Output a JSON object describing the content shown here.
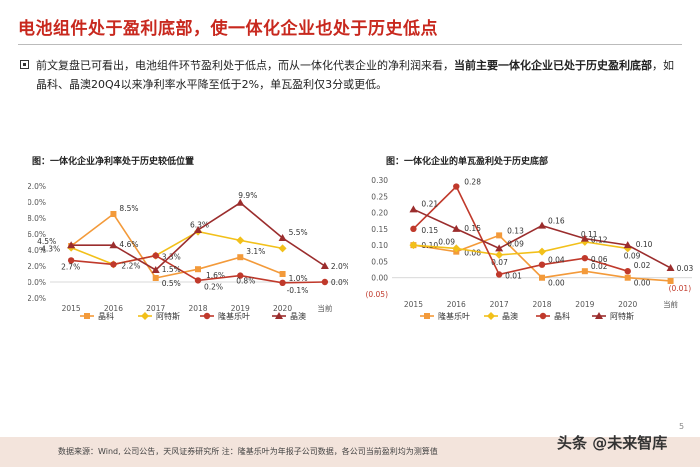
{
  "header": {
    "title": "电池组件处于盈利底部，使一体化企业也处于历史低点"
  },
  "summary": {
    "normal_part": "前文复盘已可看出，电池组件环节盈利处于低点，而从一体化代表企业的净利润来看，",
    "bold_part": "当前主要一体化企业已处于历史盈利底部",
    "tail_part": "，如晶科、晶澳20Q4以来净利率水平降至低于2%，单瓦盈利仅3分或更低。"
  },
  "footer": {
    "source": "数据来源：Wind, 公司公告，天风证券研究所  注：隆基乐叶为年报子公司数据，各公司当前盈利均为测算值",
    "watermark_main": "头条 @未来智库",
    "watermark_bg": "未来智库",
    "page": "5"
  },
  "colors": {
    "title_red": "#c8281e",
    "jinko_orange": "#f39a3a",
    "aiko_yellow": "#f2c01a",
    "longi_red": "#c0392b",
    "jasolar_darkred": "#9b2d2d"
  },
  "chart_data": [
    {
      "type": "line",
      "title": "图：一体化企业净利率处于历史较低位置",
      "categories": [
        "2015",
        "2016",
        "2017",
        "2018",
        "2019",
        "2020",
        "当前"
      ],
      "y_tick_labels": [
        "12.0%",
        "10.0%",
        "8.0%",
        "6.0%",
        "4.0%",
        "2.0%",
        "0.0%",
        "-2.0%"
      ],
      "ylim": [
        -2,
        12
      ],
      "legend_position": "bottom",
      "series": [
        {
          "name": "晶科",
          "color": "#f39a3a",
          "marker": "square",
          "values": [
            4.5,
            8.5,
            0.5,
            1.6,
            3.1,
            1.0,
            null
          ],
          "labels": [
            "4.5%",
            "8.5%",
            "0.5%",
            "1.6%",
            "3.1%",
            "1.0%",
            ""
          ]
        },
        {
          "name": "阿特斯",
          "color": "#f2c01a",
          "marker": "diamond",
          "values": [
            4.3,
            2.2,
            3.3,
            6.3,
            5.2,
            4.2,
            null
          ],
          "labels": [
            "4.3%",
            "",
            "",
            "6.3%",
            "",
            "",
            ""
          ]
        },
        {
          "name": "隆基乐叶",
          "color": "#c0392b",
          "marker": "circle",
          "values": [
            2.7,
            2.2,
            3.3,
            0.2,
            0.8,
            -0.1,
            0.0
          ],
          "labels": [
            "2.7%",
            "2.2%",
            "3.3%",
            "0.2%",
            "0.8%",
            "-0.1%",
            "0.0%"
          ]
        },
        {
          "name": "晶澳",
          "color": "#9b2d2d",
          "marker": "triangle",
          "values": [
            4.6,
            4.6,
            1.5,
            6.5,
            9.9,
            5.5,
            2.0
          ],
          "labels": [
            "",
            "4.6%",
            "1.5%",
            "",
            "9.9%",
            "5.5%",
            "2.0%"
          ]
        }
      ]
    },
    {
      "type": "line",
      "title": "图：一体化企业的单瓦盈利处于历史底部",
      "categories": [
        "2015",
        "2016",
        "2017",
        "2018",
        "2019",
        "2020",
        "当前"
      ],
      "y_tick_labels": [
        "0.30",
        "0.25",
        "0.20",
        "0.15",
        "0.10",
        "0.05",
        "0.00",
        "(0.05)"
      ],
      "ylim": [
        -0.05,
        0.3
      ],
      "legend_position": "bottom",
      "series": [
        {
          "name": "隆基乐叶",
          "color": "#f39a3a",
          "marker": "square",
          "values": [
            0.1,
            0.08,
            0.13,
            0.0,
            0.02,
            0.0,
            -0.01
          ],
          "labels": [
            "0.10",
            "0.08",
            "0.13",
            "0.00",
            "0.02",
            "0.00",
            "(0.01)"
          ]
        },
        {
          "name": "晶澳",
          "color": "#f2c01a",
          "marker": "diamond",
          "values": [
            0.1,
            0.09,
            0.07,
            0.08,
            0.11,
            0.09,
            null
          ],
          "labels": [
            "",
            "0.09",
            "0.07",
            "",
            "0.11",
            "0.09",
            ""
          ]
        },
        {
          "name": "晶科",
          "color": "#c0392b",
          "marker": "circle",
          "values": [
            0.15,
            0.28,
            0.01,
            0.04,
            0.06,
            0.02,
            null
          ],
          "labels": [
            "0.15",
            "0.28",
            "0.01",
            "0.04",
            "0.06",
            "0.02",
            ""
          ]
        },
        {
          "name": "阿特斯",
          "color": "#9b2d2d",
          "marker": "triangle",
          "values": [
            0.21,
            0.15,
            0.09,
            0.16,
            0.12,
            0.1,
            0.03
          ],
          "labels": [
            "0.21",
            "0.15",
            "0.09",
            "0.16",
            "0.12",
            "0.10",
            "0.03"
          ]
        }
      ]
    }
  ]
}
